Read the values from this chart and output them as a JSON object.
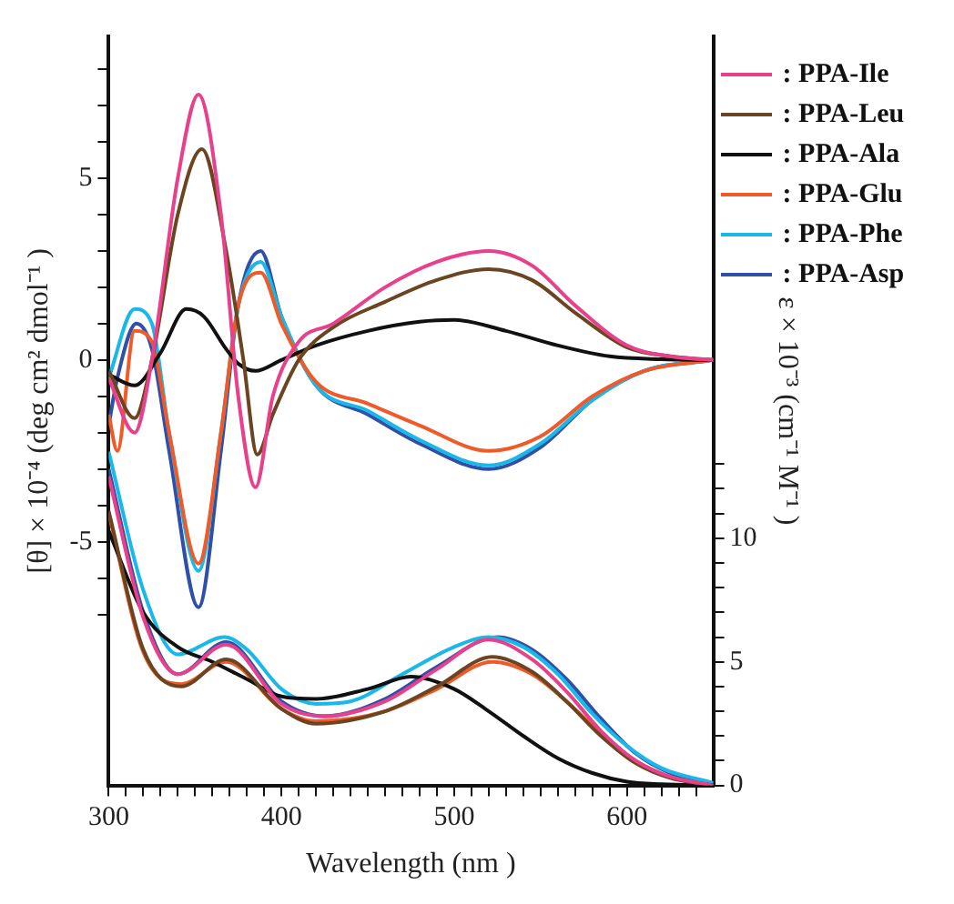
{
  "chart_data": {
    "type": "line",
    "xlabel": "Wavelength (nm )",
    "ylabel": "[θ] × 10⁻⁴ (deg cm² dmol⁻¹ )",
    "y2label": "ε × 10⁻³ (cm⁻¹ M⁻¹ )",
    "xlim": [
      300,
      650
    ],
    "ylim": [
      -11.7,
      8.9
    ],
    "y2lim": [
      0,
      30.3
    ],
    "xticks": [
      300,
      {
        "value": 310,
        "label": null
      },
      {
        "value": 320,
        "label": null
      },
      {
        "value": 330,
        "label": null
      },
      {
        "value": 340,
        "label": null
      },
      {
        "value": 350,
        "label": null
      },
      {
        "value": 360,
        "label": null
      },
      {
        "value": 370,
        "label": null
      },
      {
        "value": 380,
        "label": null
      },
      {
        "value": 390,
        "label": null
      },
      400,
      {
        "value": 410,
        "label": null
      },
      {
        "value": 420,
        "label": null
      },
      {
        "value": 430,
        "label": null
      },
      {
        "value": 440,
        "label": null
      },
      {
        "value": 450,
        "label": null
      },
      {
        "value": 460,
        "label": null
      },
      {
        "value": 470,
        "label": null
      },
      {
        "value": 480,
        "label": null
      },
      {
        "value": 490,
        "label": null
      },
      500,
      {
        "value": 510,
        "label": null
      },
      {
        "value": 520,
        "label": null
      },
      {
        "value": 530,
        "label": null
      },
      {
        "value": 540,
        "label": null
      },
      {
        "value": 550,
        "label": null
      },
      {
        "value": 560,
        "label": null
      },
      {
        "value": 570,
        "label": null
      },
      {
        "value": 580,
        "label": null
      },
      {
        "value": 590,
        "label": null
      },
      600,
      {
        "value": 610,
        "label": null
      },
      {
        "value": 620,
        "label": null
      },
      {
        "value": 630,
        "label": null
      },
      {
        "value": 640,
        "label": null
      }
    ],
    "yticks": [
      {
        "value": -7,
        "label": null
      },
      {
        "value": -6,
        "label": null
      },
      -5,
      {
        "value": -4,
        "label": null
      },
      {
        "value": -3,
        "label": null
      },
      {
        "value": -2,
        "label": null
      },
      {
        "value": -1,
        "label": null
      },
      0,
      {
        "value": 1,
        "label": null
      },
      {
        "value": 2,
        "label": null
      },
      {
        "value": 3,
        "label": null
      },
      {
        "value": 4,
        "label": null
      },
      5,
      {
        "value": 6,
        "label": null
      },
      {
        "value": 7,
        "label": null
      },
      {
        "value": 8,
        "label": null
      }
    ],
    "y2ticks": [
      0,
      {
        "value": 1,
        "label": null
      },
      {
        "value": 2,
        "label": null
      },
      {
        "value": 3,
        "label": null
      },
      {
        "value": 4,
        "label": null
      },
      5,
      {
        "value": 6,
        "label": null
      },
      {
        "value": 7,
        "label": null
      },
      {
        "value": 8,
        "label": null
      },
      {
        "value": 9,
        "label": null
      },
      10,
      {
        "value": 11,
        "label": null
      },
      {
        "value": 12,
        "label": null
      },
      {
        "value": 13,
        "label": null
      }
    ],
    "grid": false,
    "legend": "right",
    "marker": "none",
    "line_style": "solid",
    "series": [
      {
        "name": ": PPA-Ile",
        "color": "#e8408a",
        "x": [
          300,
          315,
          325,
          340,
          352,
          365,
          375,
          385,
          395,
          410,
          430,
          460,
          490,
          520,
          545,
          570,
          600,
          625,
          650
        ],
        "values": [
          -0.5,
          -2.0,
          0,
          5,
          7.3,
          4,
          -1,
          -3.5,
          -1,
          0.5,
          1,
          2,
          2.7,
          3.0,
          2.6,
          1.5,
          0.4,
          0.1,
          0
        ]
      },
      {
        "name": ": PPA-Leu",
        "color": "#6b4421",
        "x": [
          300,
          315,
          325,
          340,
          354,
          368,
          378,
          386,
          395,
          410,
          430,
          460,
          490,
          520,
          545,
          570,
          600,
          625,
          650
        ],
        "values": [
          -0.3,
          -1.6,
          0,
          4,
          5.8,
          3,
          0,
          -2.6,
          -1.5,
          0,
          0.9,
          1.6,
          2.2,
          2.5,
          2.2,
          1.3,
          0.35,
          0.1,
          0
        ]
      },
      {
        "name": ": PPA-Ala",
        "color": "#111111",
        "x": [
          300,
          315,
          330,
          345,
          355,
          368,
          375,
          385,
          400,
          420,
          450,
          480,
          500,
          530,
          560,
          590,
          620,
          650
        ],
        "values": [
          -0.4,
          -0.7,
          0.2,
          1.4,
          1.2,
          0.3,
          -0.1,
          -0.3,
          0,
          0.4,
          0.8,
          1.05,
          1.1,
          0.8,
          0.4,
          0.1,
          0.02,
          0
        ]
      },
      {
        "name": ": PPA-Glu",
        "color": "#f05a28",
        "x": [
          300,
          305,
          315,
          325,
          335,
          352,
          365,
          375,
          388,
          400,
          420,
          450,
          480,
          520,
          550,
          580,
          610,
          650
        ],
        "values": [
          -1.5,
          -2.5,
          0.8,
          0.5,
          -2,
          -5.6,
          -2,
          1.5,
          2.4,
          1,
          -0.6,
          -1.2,
          -1.8,
          -2.5,
          -2.1,
          -1.0,
          -0.3,
          0
        ]
      },
      {
        "name": ": PPA-Phe",
        "color": "#1ab8e8",
        "x": [
          300,
          315,
          325,
          335,
          352,
          365,
          375,
          388,
          400,
          420,
          450,
          480,
          520,
          550,
          580,
          610,
          650
        ],
        "values": [
          -0.5,
          1.4,
          1.0,
          -2,
          -5.8,
          -2,
          1.5,
          2.7,
          1.2,
          -0.7,
          -1.4,
          -2.2,
          -2.9,
          -2.3,
          -1.1,
          -0.3,
          0
        ]
      },
      {
        "name": ": PPA-Asp",
        "color": "#2f4fa8",
        "x": [
          300,
          305,
          316,
          325,
          335,
          352,
          365,
          375,
          388,
          400,
          420,
          450,
          480,
          520,
          550,
          580,
          610,
          650
        ],
        "values": [
          -1.8,
          -0.5,
          1.0,
          0.3,
          -2.5,
          -6.8,
          -2.5,
          1.5,
          3.0,
          1.2,
          -0.7,
          -1.5,
          -2.3,
          -3.0,
          -2.4,
          -1.1,
          -0.3,
          0
        ]
      },
      {
        "color": "#e8408a",
        "axis": "y2",
        "x": [
          300,
          320,
          340,
          368,
          400,
          425,
          460,
          490,
          520,
          545,
          565,
          585,
          605,
          625,
          650
        ],
        "values": [
          12.5,
          6.8,
          4.5,
          5.7,
          3.3,
          2.8,
          3.4,
          4.7,
          5.9,
          5.1,
          3.8,
          2.2,
          1.0,
          0.35,
          0
        ]
      },
      {
        "color": "#6b4421",
        "axis": "y2",
        "x": [
          300,
          320,
          342,
          368,
          400,
          420,
          460,
          490,
          522,
          545,
          565,
          585,
          605,
          625,
          650
        ],
        "values": [
          11.1,
          5.5,
          4.0,
          5.1,
          3.1,
          2.5,
          3.0,
          4.0,
          5.2,
          4.6,
          3.4,
          2.0,
          0.9,
          0.3,
          0
        ]
      },
      {
        "color": "#111111",
        "axis": "y2",
        "x": [
          300,
          320,
          340,
          360,
          380,
          400,
          420,
          450,
          475,
          500,
          520,
          540,
          560,
          580,
          600,
          620,
          650
        ],
        "values": [
          10.3,
          7.0,
          5.6,
          5.0,
          4.3,
          3.6,
          3.5,
          3.9,
          4.4,
          3.9,
          3.0,
          2.0,
          1.1,
          0.5,
          0.15,
          0.05,
          0
        ]
      },
      {
        "color": "#f05a28",
        "axis": "y2",
        "x": [
          300,
          320,
          342,
          368,
          400,
          420,
          460,
          490,
          522,
          545,
          565,
          585,
          605,
          625,
          650
        ],
        "values": [
          11.0,
          5.4,
          4.1,
          5.0,
          3.1,
          2.6,
          3.0,
          3.9,
          5.0,
          4.5,
          3.4,
          2.1,
          1.0,
          0.35,
          0
        ]
      },
      {
        "color": "#1ab8e8",
        "axis": "y2",
        "x": [
          300,
          320,
          340,
          367,
          380,
          400,
          420,
          440,
          470,
          500,
          520,
          540,
          560,
          580,
          600,
          620,
          650
        ],
        "values": [
          13.5,
          7.9,
          5.3,
          6.0,
          5.5,
          3.9,
          3.3,
          3.4,
          4.5,
          5.6,
          6.0,
          5.6,
          4.5,
          2.9,
          1.6,
          0.7,
          0.1
        ]
      },
      {
        "color": "#2f4fa8",
        "axis": "y2",
        "x": [
          300,
          320,
          340,
          368,
          400,
          425,
          460,
          490,
          525,
          545,
          565,
          585,
          605,
          625,
          650
        ],
        "values": [
          12.8,
          7.0,
          4.5,
          5.8,
          3.4,
          2.8,
          3.5,
          4.8,
          6.0,
          5.5,
          4.3,
          2.7,
          1.3,
          0.5,
          0.05
        ]
      }
    ]
  }
}
